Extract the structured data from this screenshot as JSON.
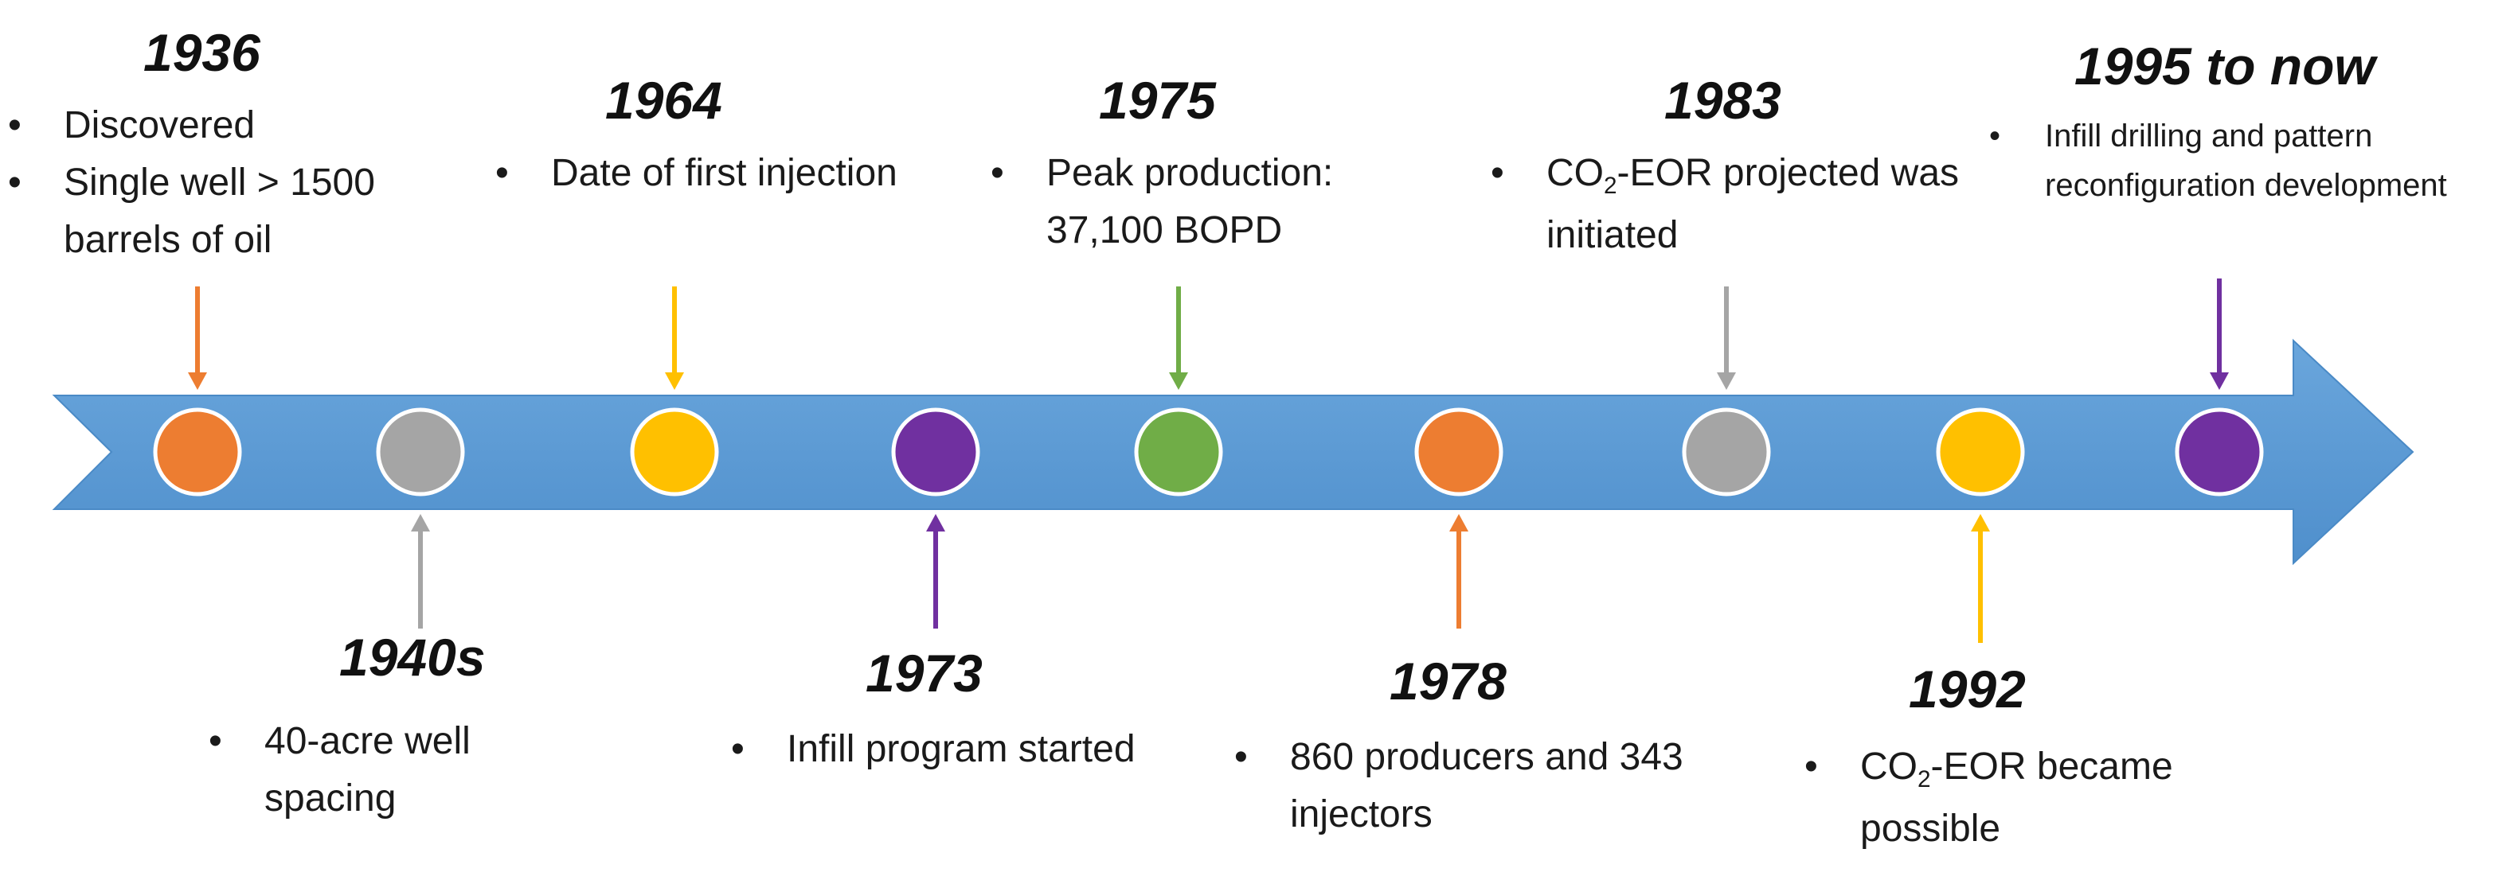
{
  "colors": {
    "band": "#5b9bd5",
    "band_dark": "#4a8ac6",
    "orange": "#ed7d31",
    "gray": "#a5a5a5",
    "yellow": "#ffc000",
    "purple": "#7030a0",
    "green": "#70ad47"
  },
  "events": [
    {
      "year": "1936",
      "position": "top",
      "color": "orange",
      "items": [
        "Discovered",
        "Single well > 1500 barrels of oil"
      ]
    },
    {
      "year": "1940s",
      "position": "bottom",
      "color": "gray",
      "items": [
        "40-acre well spacing"
      ]
    },
    {
      "year": "1964",
      "position": "top",
      "color": "yellow",
      "items": [
        "Date of first injection"
      ]
    },
    {
      "year": "1973",
      "position": "bottom",
      "color": "purple",
      "items": [
        "Infill program started"
      ]
    },
    {
      "year": "1975",
      "position": "top",
      "color": "green",
      "items": [
        "Peak production: 37,100 BOPD"
      ]
    },
    {
      "year": "1978",
      "position": "bottom",
      "color": "orange",
      "items": [
        "860 producers and 343 injectors"
      ]
    },
    {
      "year": "1983",
      "position": "top",
      "color": "gray",
      "items": [
        "CO2-EOR projected was initiated"
      ]
    },
    {
      "year": "1992",
      "position": "bottom",
      "color": "yellow",
      "items": [
        "CO2-EOR became possible"
      ]
    },
    {
      "year": "1995 to now",
      "position": "top",
      "color": "purple",
      "items": [
        "Infill drilling and pattern reconfiguration development"
      ]
    }
  ]
}
